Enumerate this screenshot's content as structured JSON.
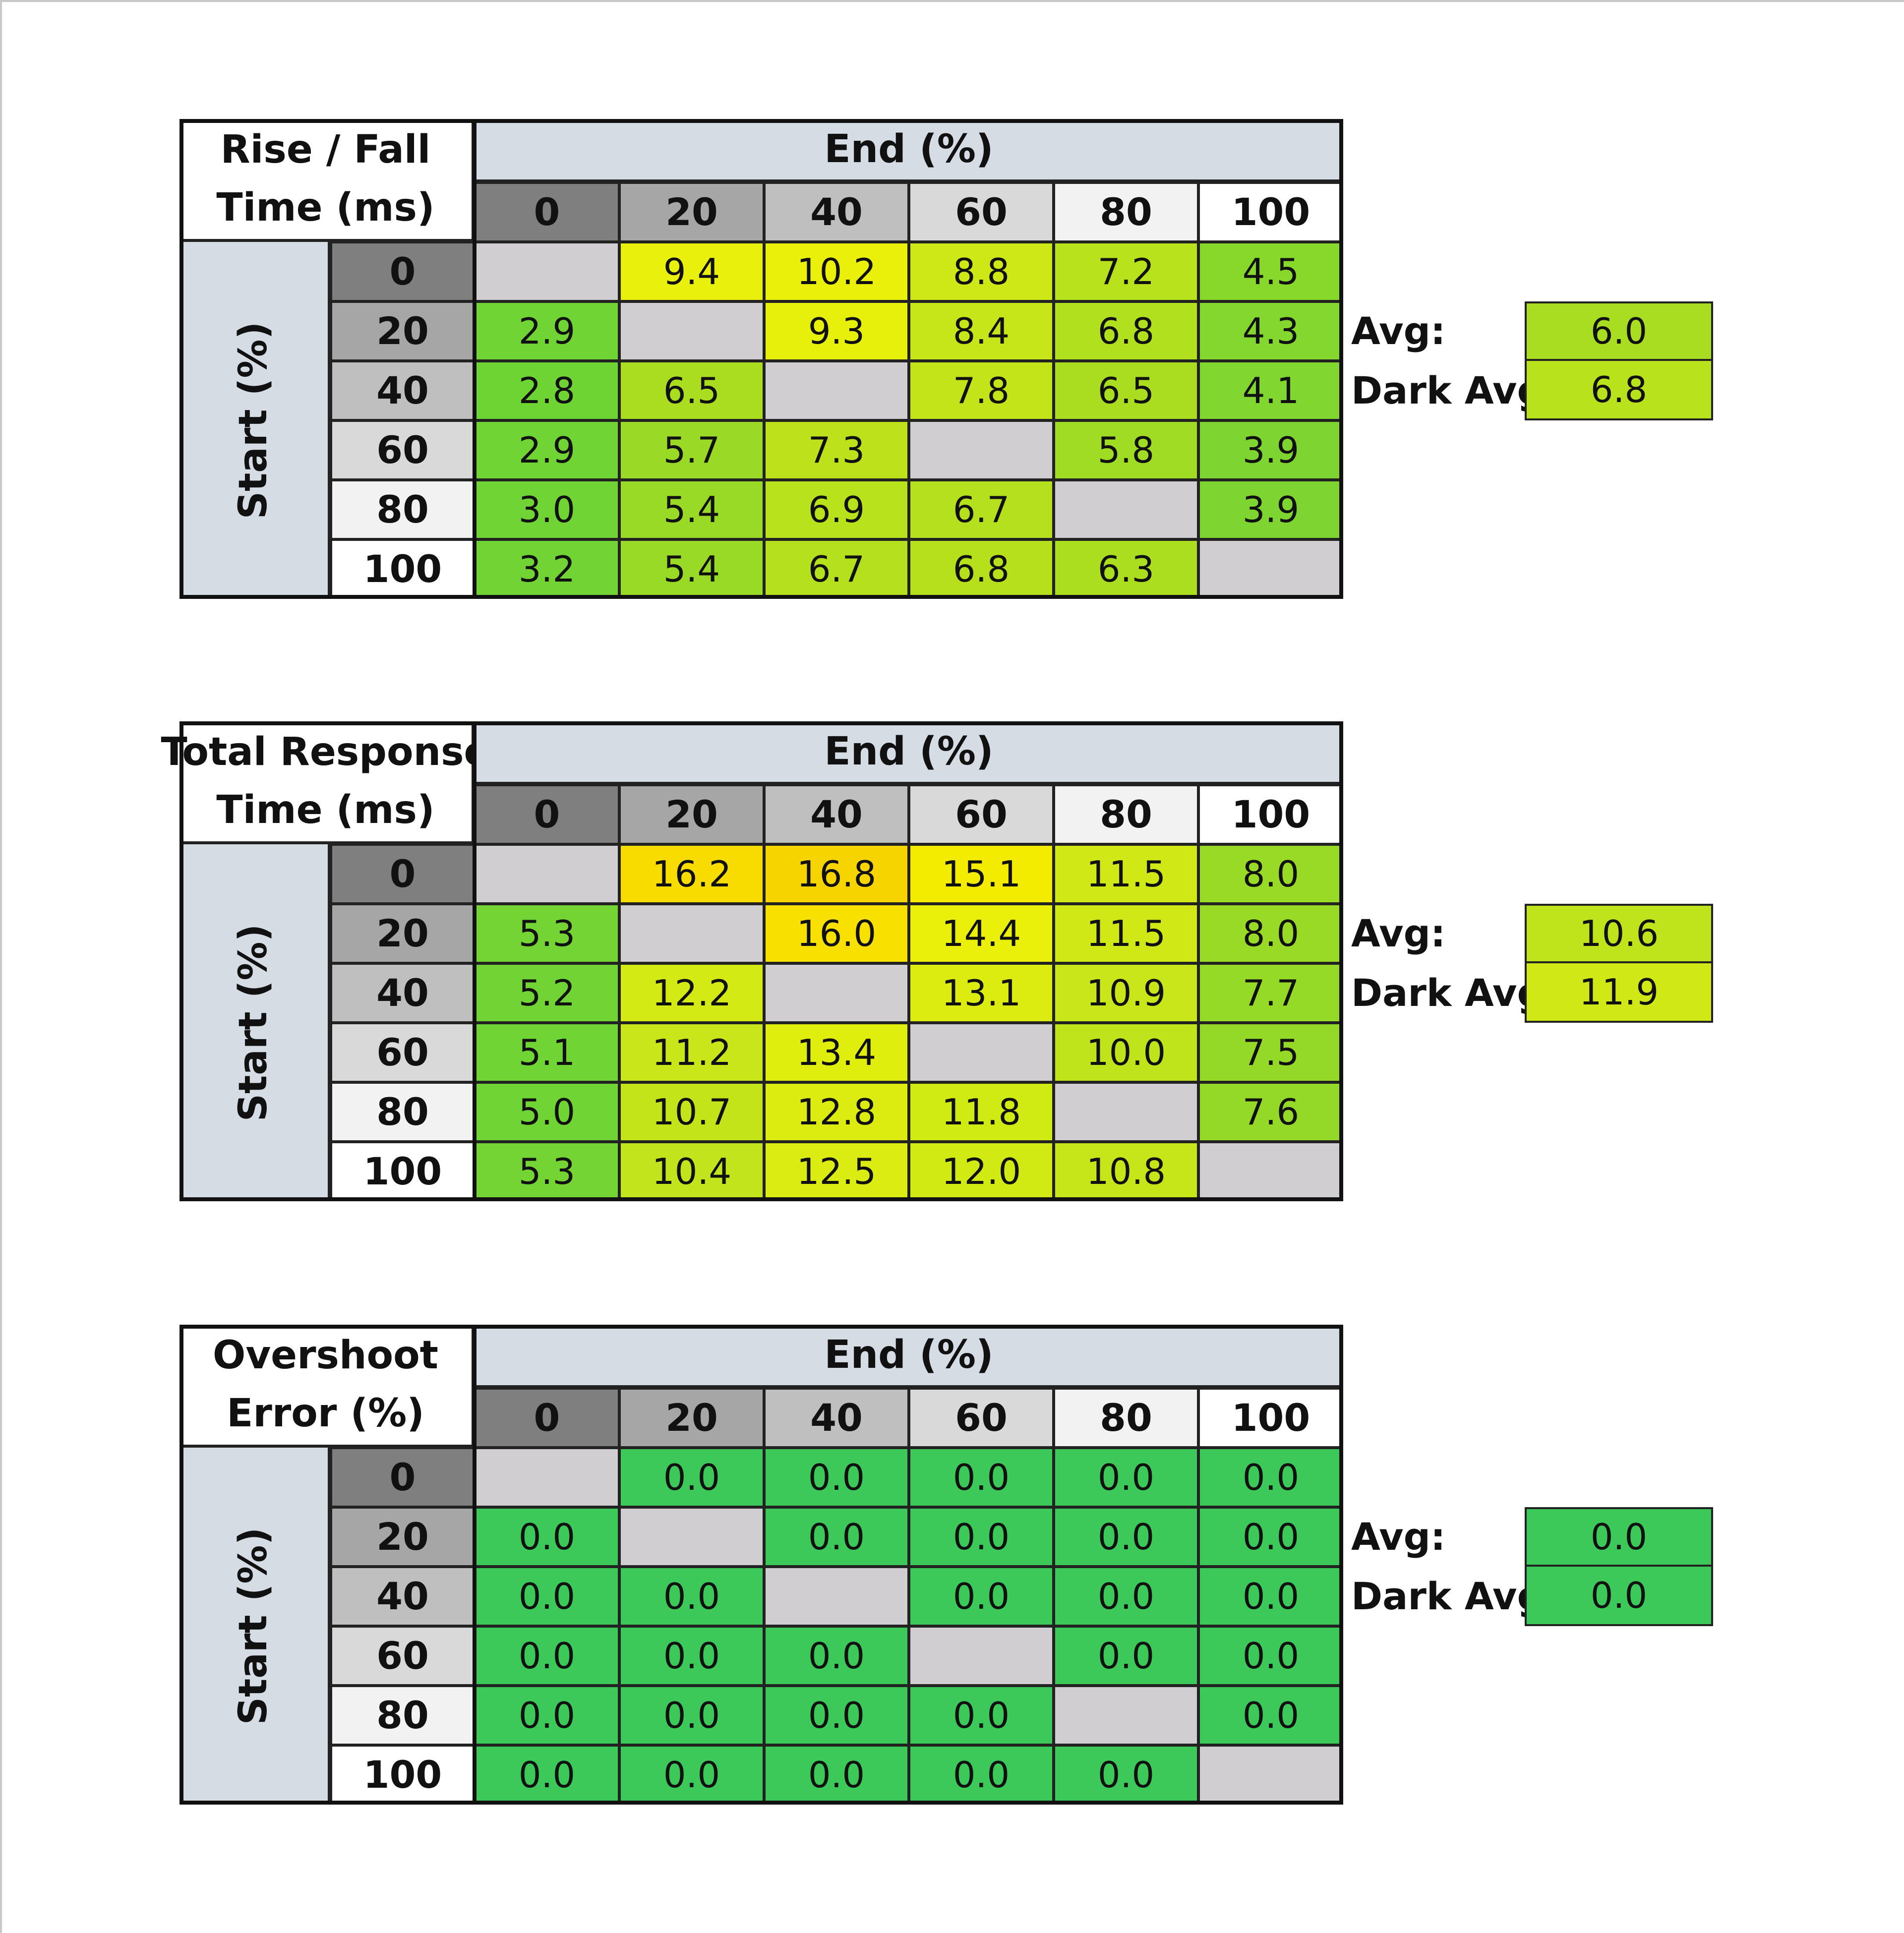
{
  "chart_data": [
    {
      "type": "table",
      "title_lines": [
        "Rise / Fall",
        "Time (ms)"
      ],
      "column_header": "End (%)",
      "row_header": "Start (%)",
      "columns": [
        "0",
        "20",
        "40",
        "60",
        "80",
        "100"
      ],
      "rows": [
        "0",
        "20",
        "40",
        "60",
        "80",
        "100"
      ],
      "values": [
        [
          "",
          "9.4",
          "10.2",
          "8.8",
          "7.2",
          "4.5"
        ],
        [
          "2.9",
          "",
          "9.3",
          "8.4",
          "6.8",
          "4.3"
        ],
        [
          "2.8",
          "6.5",
          "",
          "7.8",
          "6.5",
          "4.1"
        ],
        [
          "2.9",
          "5.7",
          "7.3",
          "",
          "5.8",
          "3.9"
        ],
        [
          "3.0",
          "5.4",
          "6.9",
          "6.7",
          "",
          "3.9"
        ],
        [
          "3.2",
          "5.4",
          "6.7",
          "6.8",
          "6.3",
          ""
        ]
      ],
      "colors": [
        [
          "#d0ced0",
          "#e8f00c",
          "#eaf00a",
          "#cde816",
          "#b8e21c",
          "#88d82c"
        ],
        [
          "#6fd434",
          "#d0ced0",
          "#e6f00a",
          "#c6e61a",
          "#b0e01e",
          "#84d72e"
        ],
        [
          "#6ed434",
          "#aadd20",
          "#d0ced0",
          "#c4e41a",
          "#aadd20",
          "#82d630"
        ],
        [
          "#6fd434",
          "#9ada26",
          "#bde21c",
          "#d0ced0",
          "#a0dc24",
          "#7ed532"
        ],
        [
          "#70d434",
          "#98da26",
          "#b8e21c",
          "#b4e01e",
          "#d0ced0",
          "#7ed532"
        ],
        [
          "#72d434",
          "#98da26",
          "#b4e01e",
          "#b6e01c",
          "#acde20",
          "#d0ced0"
        ]
      ],
      "avg_label": "Avg:",
      "avg_value": "6.0",
      "avg_color": "#a8dd22",
      "dark_avg_label": "Dark Avg:",
      "dark_avg_value": "6.8",
      "dark_avg_color": "#b8e21c"
    },
    {
      "type": "table",
      "title_lines": [
        "Total Response",
        "Time (ms)"
      ],
      "column_header": "End (%)",
      "row_header": "Start (%)",
      "columns": [
        "0",
        "20",
        "40",
        "60",
        "80",
        "100"
      ],
      "rows": [
        "0",
        "20",
        "40",
        "60",
        "80",
        "100"
      ],
      "values": [
        [
          "",
          "16.2",
          "16.8",
          "15.1",
          "11.5",
          "8.0"
        ],
        [
          "5.3",
          "",
          "16.0",
          "14.4",
          "11.5",
          "8.0"
        ],
        [
          "5.2",
          "12.2",
          "",
          "13.1",
          "10.9",
          "7.7"
        ],
        [
          "5.1",
          "11.2",
          "13.4",
          "",
          "10.0",
          "7.5"
        ],
        [
          "5.0",
          "10.7",
          "12.8",
          "11.8",
          "",
          "7.6"
        ],
        [
          "5.3",
          "10.4",
          "12.5",
          "12.0",
          "10.8",
          ""
        ]
      ],
      "colors": [
        [
          "#d0ced0",
          "#f8dc00",
          "#f6d400",
          "#f4ec00",
          "#cfe816",
          "#98da26"
        ],
        [
          "#74d434",
          "#d0ced0",
          "#f8e000",
          "#eaf00a",
          "#cfe816",
          "#98da26"
        ],
        [
          "#72d434",
          "#d4ea14",
          "#d0ced0",
          "#dcec10",
          "#c8e61a",
          "#96da28"
        ],
        [
          "#70d434",
          "#c8e61a",
          "#e0ee0e",
          "#d0ced0",
          "#c0e41c",
          "#94d928"
        ],
        [
          "#6fd434",
          "#c4e41a",
          "#dcec10",
          "#d0ea14",
          "#d0ced0",
          "#94d928"
        ],
        [
          "#74d434",
          "#c2e41c",
          "#daec12",
          "#d2ea14",
          "#c6e61a",
          "#d0ced0"
        ]
      ],
      "avg_label": "Avg:",
      "avg_value": "10.6",
      "avg_color": "#c0e41c",
      "dark_avg_label": "Dark Avg:",
      "dark_avg_value": "11.9",
      "dark_avg_color": "#cfe816"
    },
    {
      "type": "table",
      "title_lines": [
        "Overshoot",
        "Error (%)"
      ],
      "column_header": "End (%)",
      "row_header": "Start (%)",
      "columns": [
        "0",
        "20",
        "40",
        "60",
        "80",
        "100"
      ],
      "rows": [
        "0",
        "20",
        "40",
        "60",
        "80",
        "100"
      ],
      "values": [
        [
          "",
          "0.0",
          "0.0",
          "0.0",
          "0.0",
          "0.0"
        ],
        [
          "0.0",
          "",
          "0.0",
          "0.0",
          "0.0",
          "0.0"
        ],
        [
          "0.0",
          "0.0",
          "",
          "0.0",
          "0.0",
          "0.0"
        ],
        [
          "0.0",
          "0.0",
          "0.0",
          "",
          "0.0",
          "0.0"
        ],
        [
          "0.0",
          "0.0",
          "0.0",
          "0.0",
          "",
          "0.0"
        ],
        [
          "0.0",
          "0.0",
          "0.0",
          "0.0",
          "0.0",
          ""
        ]
      ],
      "cell_color": "#3cc95a",
      "blank_color": "#d0ced0",
      "avg_label": "Avg:",
      "avg_value": "0.0",
      "avg_color": "#3cc95a",
      "dark_avg_label": "Dark Avg:",
      "dark_avg_value": "0.0",
      "dark_avg_color": "#3cc95a"
    }
  ],
  "header_shades": [
    "#7f7f7f",
    "#a6a6a6",
    "#bfbfbf",
    "#d9d9d9",
    "#f2f2f2",
    "#ffffff"
  ]
}
